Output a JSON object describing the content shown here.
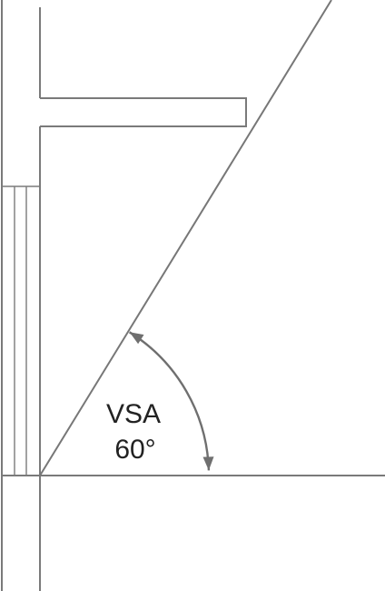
{
  "diagram": {
    "angle_label": "VSA",
    "angle_value": "60°",
    "angle_degrees": 60,
    "colors": {
      "lines": "#7a7a7a",
      "arc": "#6f6f6f",
      "text": "#222222"
    }
  }
}
